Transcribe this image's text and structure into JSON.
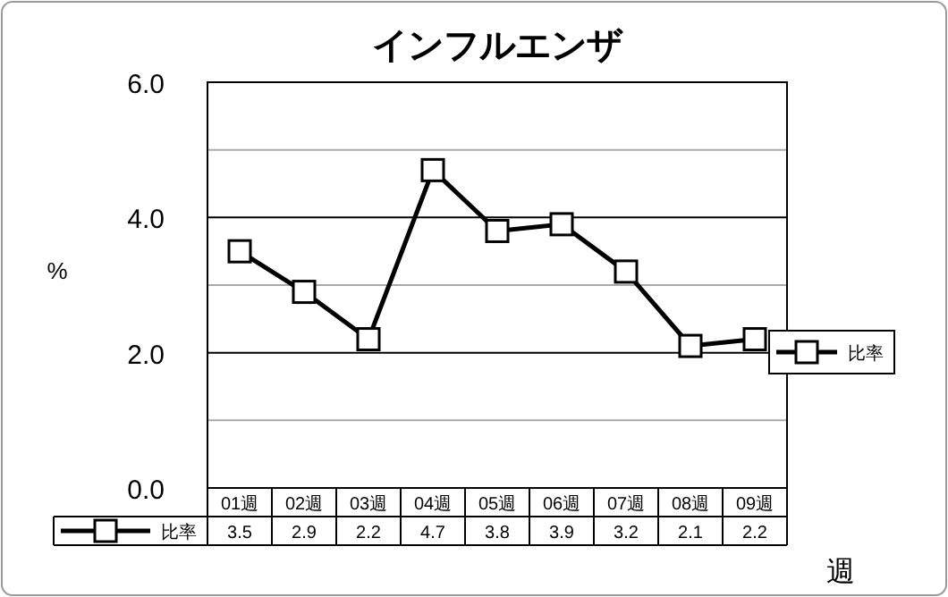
{
  "chart_data": {
    "type": "line",
    "title": "インフルエンザ",
    "xlabel": "週",
    "ylabel": "%",
    "categories": [
      "01週",
      "02週",
      "03週",
      "04週",
      "05週",
      "06週",
      "07週",
      "08週",
      "09週"
    ],
    "series": [
      {
        "name": "比率",
        "color": "#000000",
        "values": [
          3.5,
          2.9,
          2.2,
          4.7,
          3.8,
          3.9,
          3.2,
          2.1,
          2.2
        ]
      }
    ],
    "ylim": [
      0,
      6
    ],
    "yticks": [
      {
        "value": 0,
        "label": "0.0"
      },
      {
        "value": 1,
        "label": null
      },
      {
        "value": 2,
        "label": "2.0"
      },
      {
        "value": 3,
        "label": null
      },
      {
        "value": 4,
        "label": "4.0"
      },
      {
        "value": 5,
        "label": null
      },
      {
        "value": 6,
        "label": "6.0"
      }
    ],
    "grid": "y",
    "legend": "right",
    "marker": "square",
    "line_style": "solid",
    "data_labels": true
  }
}
